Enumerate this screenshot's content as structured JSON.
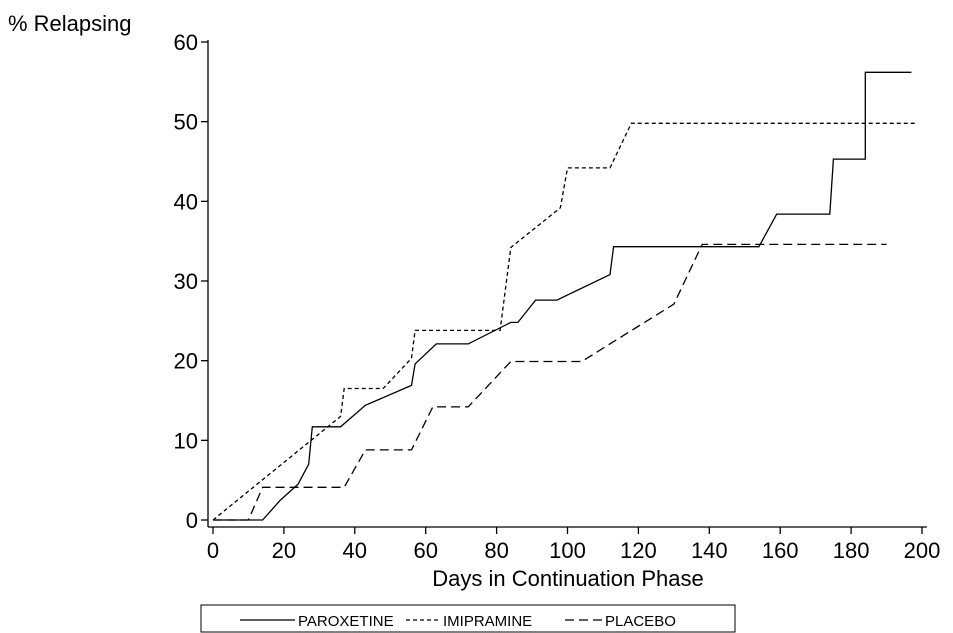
{
  "chart_data": {
    "type": "line",
    "ylabel": "% Relapsing",
    "xlabel": "Days in Continuation Phase",
    "xlim": [
      0,
      200
    ],
    "ylim": [
      0,
      60
    ],
    "x_ticks": [
      0,
      20,
      40,
      60,
      80,
      100,
      120,
      140,
      160,
      180,
      200
    ],
    "y_ticks": [
      0,
      10,
      20,
      30,
      40,
      50,
      60
    ],
    "grid": false,
    "legend_position": "bottom",
    "series": [
      {
        "name": "PAROXETINE",
        "line_style": "solid",
        "color": "#000000",
        "points": [
          [
            0,
            0
          ],
          [
            14,
            0
          ],
          [
            19,
            2.5
          ],
          [
            24,
            4.5
          ],
          [
            27,
            7
          ],
          [
            28,
            11.7
          ],
          [
            36,
            11.7
          ],
          [
            43,
            14.4
          ],
          [
            56,
            16.9
          ],
          [
            57,
            19.6
          ],
          [
            63,
            22.1
          ],
          [
            72,
            22.1
          ],
          [
            84,
            24.8
          ],
          [
            86,
            24.8
          ],
          [
            91,
            27.6
          ],
          [
            97,
            27.6
          ],
          [
            112,
            30.8
          ],
          [
            113,
            34.3
          ],
          [
            154,
            34.3
          ],
          [
            159,
            38.4
          ],
          [
            174,
            38.4
          ],
          [
            175,
            45.3
          ],
          [
            184,
            45.3
          ],
          [
            184,
            56.2
          ],
          [
            197,
            56.2
          ]
        ]
      },
      {
        "name": "IMIPRAMINE",
        "line_style": "dashed",
        "color": "#000000",
        "points": [
          [
            0,
            0
          ],
          [
            36,
            13
          ],
          [
            37,
            16.5
          ],
          [
            48,
            16.5
          ],
          [
            56,
            20.3
          ],
          [
            57,
            23.8
          ],
          [
            81,
            23.8
          ],
          [
            84,
            34.2
          ],
          [
            98,
            39.2
          ],
          [
            100,
            44.2
          ],
          [
            112,
            44.2
          ],
          [
            118,
            49.8
          ],
          [
            198,
            49.8
          ]
        ]
      },
      {
        "name": "PLACEBO",
        "line_style": "long-dashed",
        "color": "#000000",
        "points": [
          [
            0,
            0
          ],
          [
            10,
            0
          ],
          [
            14,
            4.1
          ],
          [
            37,
            4.1
          ],
          [
            43,
            8.8
          ],
          [
            56,
            8.8
          ],
          [
            62,
            14.2
          ],
          [
            72,
            14.2
          ],
          [
            84,
            19.9
          ],
          [
            104,
            19.9
          ],
          [
            130,
            27.1
          ],
          [
            138,
            34.6
          ],
          [
            190,
            34.6
          ]
        ]
      }
    ]
  }
}
